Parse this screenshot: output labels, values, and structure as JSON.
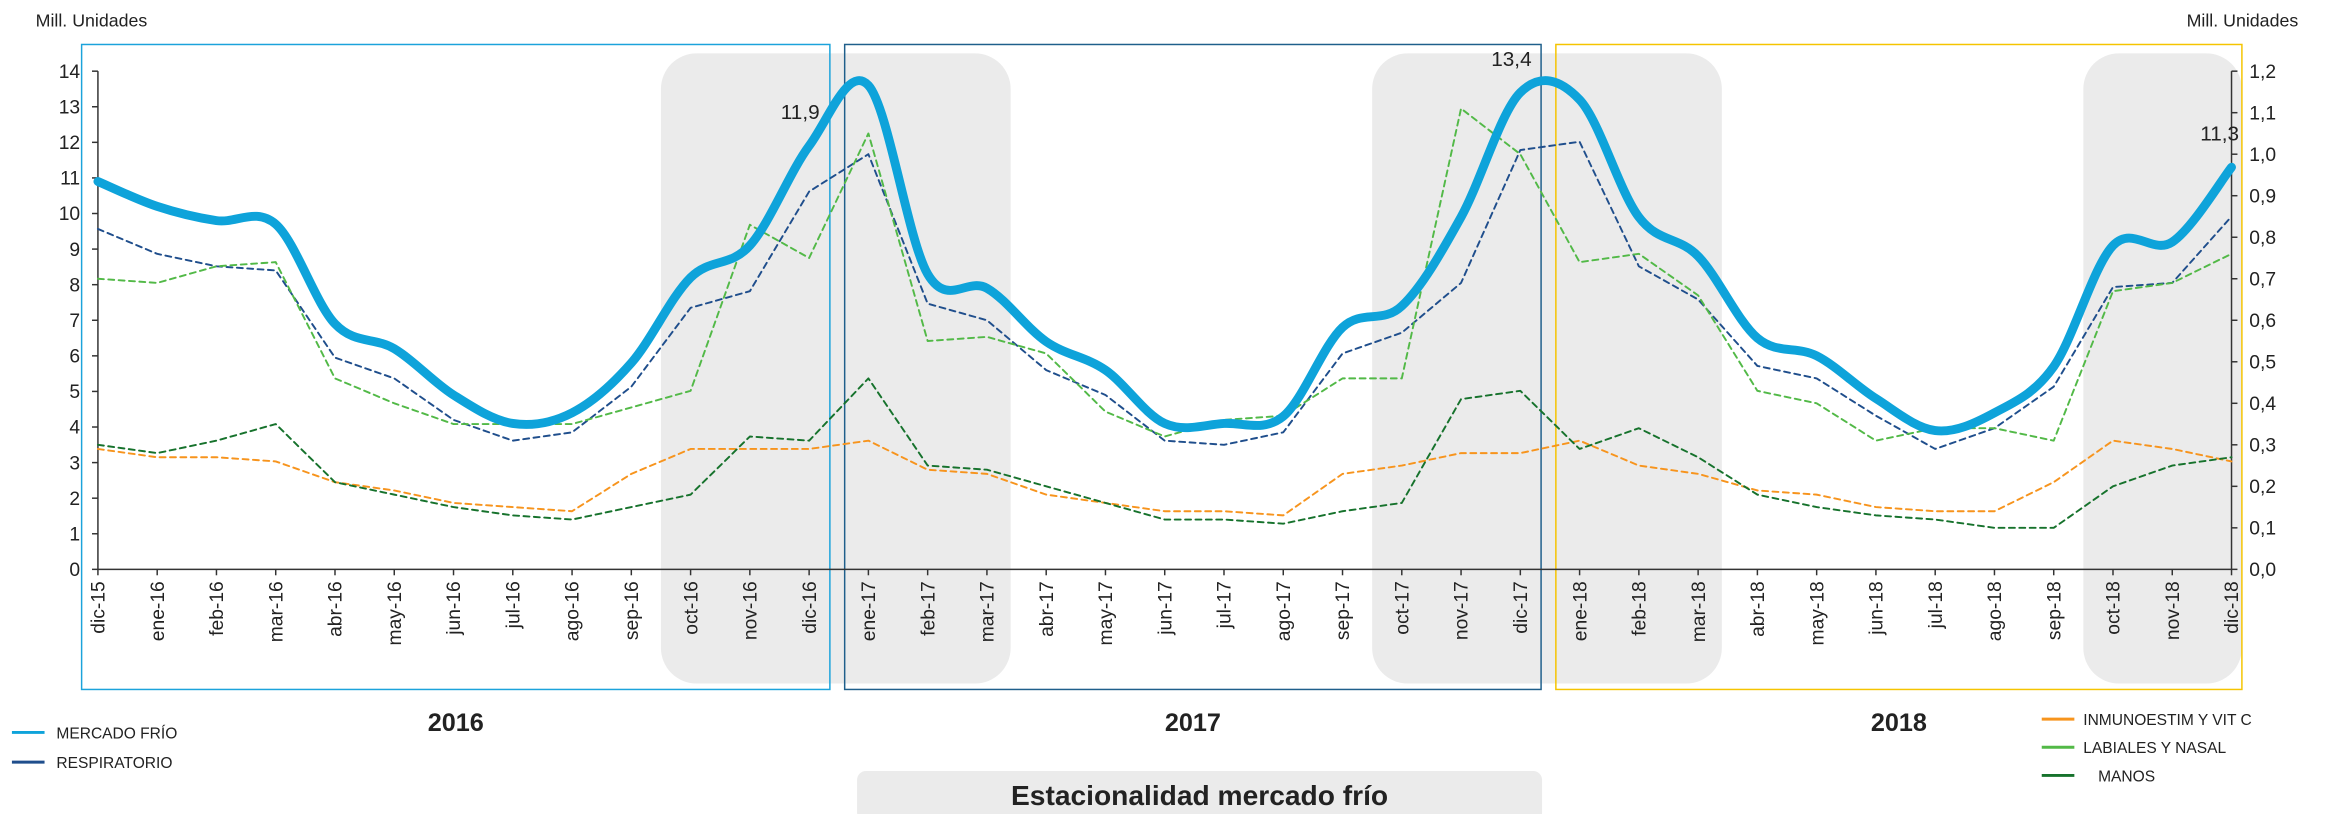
{
  "chart_data": {
    "type": "line",
    "title": "Estacionalidad mercado frío",
    "y_label": "Mill. Unidades",
    "y2_label": "Mill. Unidades",
    "categories": [
      "dic-15",
      "ene-16",
      "feb-16",
      "mar-16",
      "abr-16",
      "may-16",
      "jun-16",
      "jul-16",
      "ago-16",
      "sep-16",
      "oct-16",
      "nov-16",
      "dic-16",
      "ene-17",
      "feb-17",
      "mar-17",
      "abr-17",
      "may-17",
      "jun-17",
      "jul-17",
      "ago-17",
      "sep-17",
      "oct-17",
      "nov-17",
      "dic-17",
      "ene-18",
      "feb-18",
      "mar-18",
      "abr-18",
      "may-18",
      "jun-18",
      "jul-18",
      "ago-18",
      "sep-18",
      "oct-18",
      "nov-18",
      "dic-18"
    ],
    "ylim": [
      0,
      14
    ],
    "yticks": [
      0,
      1,
      2,
      3,
      4,
      5,
      6,
      7,
      8,
      9,
      10,
      11,
      12,
      13,
      14
    ],
    "y2lim": [
      0,
      1.2
    ],
    "y2ticks": [
      {
        "value": 0,
        "label": "0,0"
      },
      {
        "value": 0.1,
        "label": "0,1"
      },
      {
        "value": 0.2,
        "label": "0,2"
      },
      {
        "value": 0.3,
        "label": "0,3"
      },
      {
        "value": 0.4,
        "label": "0,4"
      },
      {
        "value": 0.5,
        "label": "0,5"
      },
      {
        "value": 0.6,
        "label": "0,6"
      },
      {
        "value": 0.7,
        "label": "0,7"
      },
      {
        "value": 0.8,
        "label": "0,8"
      },
      {
        "value": 0.9,
        "label": "0,9"
      },
      {
        "value": 1.0,
        "label": "1,0"
      },
      {
        "value": 1.1,
        "label": "1,1"
      },
      {
        "value": 1.2,
        "label": "1,2"
      }
    ],
    "series": [
      {
        "name": "MERCADO FRÍO",
        "color": "#0ea3da",
        "line_style": "solid",
        "smooth": true,
        "axis": "y",
        "values": [
          10.9,
          10.2,
          9.8,
          9.7,
          6.9,
          6.2,
          4.9,
          4.1,
          4.4,
          5.8,
          8.2,
          9.1,
          11.9,
          13.6,
          8.3,
          7.9,
          6.4,
          5.6,
          4.1,
          4.1,
          4.3,
          6.8,
          7.4,
          9.9,
          13.4,
          13.2,
          9.9,
          8.8,
          6.5,
          6.0,
          4.8,
          3.9,
          4.4,
          5.7,
          9.1,
          9.2,
          11.3
        ]
      },
      {
        "name": "RESPIRATORIO",
        "color": "#1f4e8c",
        "line_style": "dashed",
        "axis": "y2",
        "values": [
          0.82,
          0.76,
          0.73,
          0.72,
          0.51,
          0.46,
          0.36,
          0.31,
          0.33,
          0.44,
          0.63,
          0.67,
          0.91,
          1.0,
          0.64,
          0.6,
          0.48,
          0.42,
          0.31,
          0.3,
          0.33,
          0.52,
          0.57,
          0.69,
          1.01,
          1.03,
          0.73,
          0.65,
          0.49,
          0.46,
          0.37,
          0.29,
          0.34,
          0.44,
          0.68,
          0.69,
          0.85
        ]
      },
      {
        "name": "INMUNOESTIM Y VIT C",
        "color": "#f7941d",
        "line_style": "dashed",
        "axis": "y2",
        "values": [
          0.29,
          0.27,
          0.27,
          0.26,
          0.21,
          0.19,
          0.16,
          0.15,
          0.14,
          0.23,
          0.29,
          0.29,
          0.29,
          0.31,
          0.24,
          0.23,
          0.18,
          0.16,
          0.14,
          0.14,
          0.13,
          0.23,
          0.25,
          0.28,
          0.28,
          0.31,
          0.25,
          0.23,
          0.19,
          0.18,
          0.15,
          0.14,
          0.14,
          0.21,
          0.31,
          0.29,
          0.26
        ]
      },
      {
        "name": "LABIALES Y NASAL",
        "color": "#52b947",
        "line_style": "dashed",
        "axis": "y2",
        "values": [
          0.7,
          0.69,
          0.73,
          0.74,
          0.46,
          0.4,
          0.35,
          0.35,
          0.35,
          0.39,
          0.43,
          0.83,
          0.75,
          1.05,
          0.55,
          0.56,
          0.52,
          0.38,
          0.32,
          0.36,
          0.37,
          0.46,
          0.46,
          1.11,
          1.0,
          0.74,
          0.76,
          0.66,
          0.43,
          0.4,
          0.31,
          0.34,
          0.34,
          0.31,
          0.67,
          0.69,
          0.76
        ]
      },
      {
        "name": "MANOS",
        "color": "#16722c",
        "line_style": "dashed",
        "axis": "y2",
        "values": [
          0.3,
          0.28,
          0.31,
          0.35,
          0.21,
          0.18,
          0.15,
          0.13,
          0.12,
          0.15,
          0.18,
          0.32,
          0.31,
          0.46,
          0.25,
          0.24,
          0.2,
          0.16,
          0.12,
          0.12,
          0.11,
          0.14,
          0.16,
          0.41,
          0.43,
          0.29,
          0.34,
          0.27,
          0.18,
          0.15,
          0.13,
          0.12,
          0.1,
          0.1,
          0.2,
          0.25,
          0.27
        ]
      }
    ],
    "annotations": [
      {
        "label": "11,9",
        "x": "dic-16"
      },
      {
        "label": "13,4",
        "x": "dic-17"
      },
      {
        "label": "11,3",
        "x": "dic-18"
      }
    ],
    "shaded_periods": [
      [
        "oct-16",
        "mar-17"
      ],
      [
        "oct-17",
        "mar-18"
      ],
      [
        "oct-18",
        "dic-18"
      ]
    ],
    "year_groups": [
      {
        "label": "2016",
        "color": "#1ba3db",
        "from": "dic-15",
        "to": "dic-16"
      },
      {
        "label": "2017",
        "color": "#1f5f8b",
        "from": "ene-17",
        "to": "dic-17"
      },
      {
        "label": "2018",
        "color": "#f5c400",
        "from": "ene-18",
        "to": "dic-18"
      }
    ]
  }
}
